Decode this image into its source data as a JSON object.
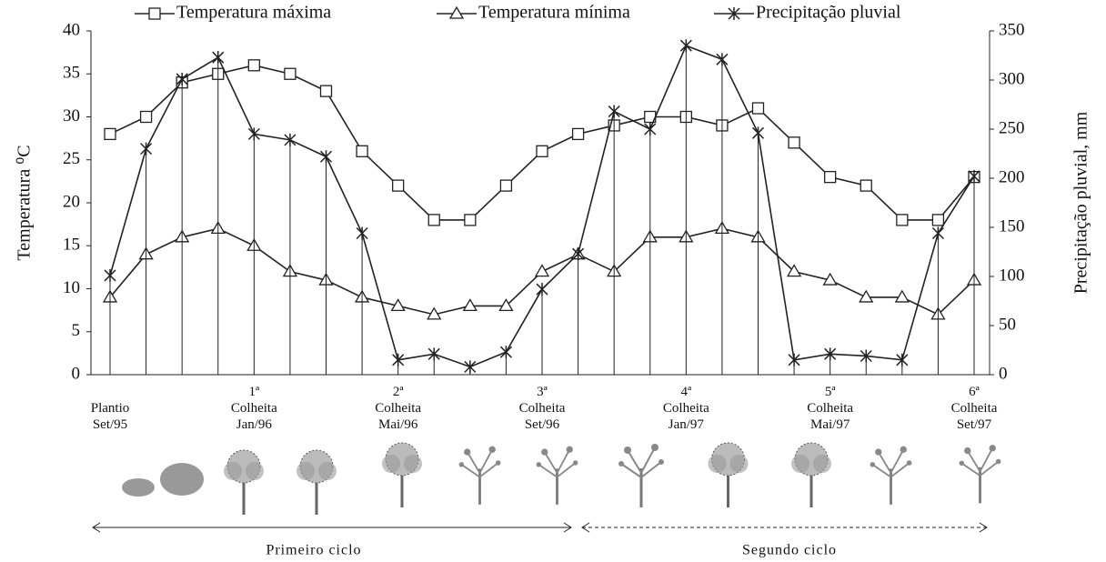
{
  "chart_data": {
    "type": "line",
    "categories": [
      "Plantio\nSet/95",
      null,
      null,
      null,
      "1ª\nColheita\nJan/96",
      null,
      null,
      null,
      "2ª\nColheita\nMai/96",
      null,
      null,
      null,
      "3ª\nColheita\nSet/96",
      null,
      null,
      null,
      "4ª\nColheita\nJan/97",
      null,
      null,
      null,
      "5ª\nColheita\nMai/97",
      null,
      null,
      null,
      "6ª\nColheita\nSet/97"
    ],
    "series": [
      {
        "name": "Temperatura máxima",
        "color": "#222222",
        "marker": "square",
        "values": [
          28,
          30,
          34,
          35,
          36,
          35,
          33,
          26,
          22,
          18,
          18,
          22,
          26,
          28,
          29,
          30,
          30,
          29,
          31,
          27,
          23,
          22,
          18,
          18,
          23
        ]
      },
      {
        "name": "Temperatura mínima",
        "color": "#222222",
        "marker": "triangle",
        "values": [
          9,
          14,
          16,
          17,
          15,
          12,
          11,
          9,
          8,
          7,
          8,
          8,
          12,
          14,
          12,
          16,
          16,
          17,
          16,
          12,
          11,
          9,
          9,
          7,
          11
        ]
      },
      {
        "name": "Precipitação pluvial",
        "color": "#222222",
        "marker": "star",
        "axis": "y2",
        "drop_lines": true,
        "values": [
          101,
          230,
          301,
          323,
          245,
          239,
          222,
          144,
          15,
          21,
          8,
          23,
          87,
          123,
          268,
          250,
          335,
          321,
          246,
          15,
          21,
          19,
          15,
          144,
          202
        ]
      }
    ],
    "ylabel": "Temperatura ⁰C",
    "y2label": "Precipitação pluvial, mm",
    "ylim": [
      0,
      40
    ],
    "yticks": [
      0,
      5,
      10,
      15,
      20,
      25,
      30,
      35,
      40
    ],
    "y2lim": [
      0,
      350
    ],
    "y2ticks": [
      0,
      50,
      100,
      150,
      200,
      250,
      300,
      350
    ],
    "annotations": [
      "Primeiro ciclo",
      "Segundo ciclo"
    ]
  }
}
